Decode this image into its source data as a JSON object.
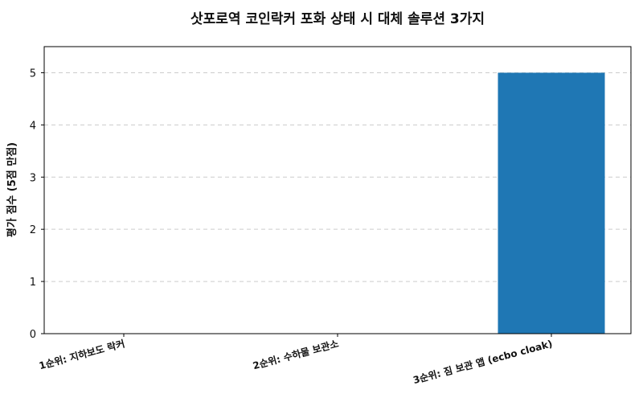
{
  "chart_data": {
    "type": "bar",
    "title": "삿포로역 코인락커 포화 상태 시 대체 솔루션 3가지",
    "xlabel": "",
    "ylabel": "평가 점수 (5점 만점)",
    "categories": [
      "1순위: 지하보도 락커",
      "2순위: 수하물 보관소",
      "3순위: 짐 보관 앱 (ecbo cloak)"
    ],
    "values": [
      0,
      0,
      5
    ],
    "ylim": [
      0,
      5.5
    ],
    "yticks": [
      "0",
      "1",
      "2",
      "3",
      "4",
      "5"
    ],
    "grid": true,
    "bar_color": "#1f77b4"
  }
}
